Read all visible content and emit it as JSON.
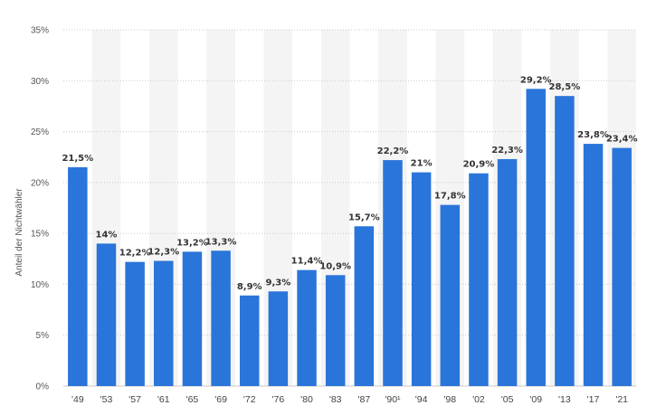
{
  "chart_data": {
    "type": "bar",
    "ylabel": "Anteil der Nichtwähler",
    "xlabel": "",
    "ylim": [
      0,
      35
    ],
    "y_ticks": [
      "0%",
      "5%",
      "10%",
      "15%",
      "20%",
      "25%",
      "30%",
      "35%"
    ],
    "grid": "horizontal dotted",
    "categories": [
      "'49",
      "'53",
      "'57",
      "'61",
      "'65",
      "'69",
      "'72",
      "'76",
      "'80",
      "'83",
      "'87",
      "'90¹",
      "'94",
      "'98",
      "'02",
      "'05",
      "'09",
      "'13",
      "'17",
      "'21"
    ],
    "values": [
      21.5,
      14,
      12.2,
      12.3,
      13.2,
      13.3,
      8.9,
      9.3,
      11.4,
      10.9,
      15.7,
      22.2,
      21,
      17.8,
      20.9,
      22.3,
      29.2,
      28.5,
      23.8,
      23.4
    ],
    "data_labels": [
      "21,5%",
      "14%",
      "12,2%",
      "12,3%",
      "13,2%",
      "13,3%",
      "8,9%",
      "9,3%",
      "11,4%",
      "10,9%",
      "15,7%",
      "22,2%",
      "21%",
      "17,8%",
      "20,9%",
      "22,3%",
      "29,2%",
      "28,5%",
      "23,8%",
      "23,4%"
    ],
    "colors": {
      "bar": "#2a75d9",
      "band": "#f4f4f4",
      "grid": "#c8c8c8"
    }
  }
}
